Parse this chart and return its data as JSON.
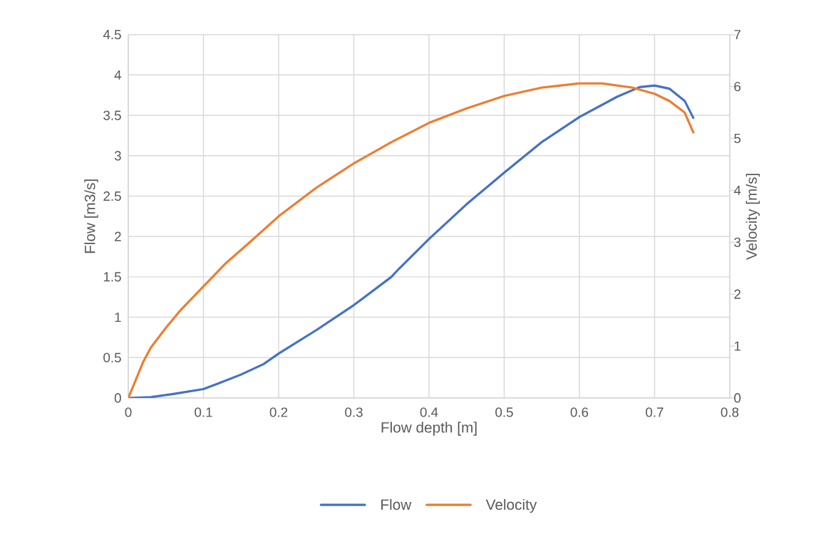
{
  "chart_data": {
    "type": "line",
    "xlabel": "Flow depth [m]",
    "ylabel": "Flow [m3/s]",
    "y2label": "Velocity [m/s]",
    "xlim": [
      0,
      0.8
    ],
    "xticks": [
      0,
      0.1,
      0.2,
      0.3,
      0.4,
      0.5,
      0.6,
      0.7,
      0.8
    ],
    "ylim": [
      0,
      4.5
    ],
    "yticks": [
      0,
      0.5,
      1,
      1.5,
      2,
      2.5,
      3,
      3.5,
      4,
      4.5
    ],
    "y2lim": [
      0,
      7
    ],
    "y2ticks": [
      0,
      1,
      2,
      3,
      4,
      5,
      6,
      7
    ],
    "grid": true,
    "legend": "bottom",
    "series": [
      {
        "name": "Flow",
        "color": "#4472c4",
        "x": [
          0,
          0.03,
          0.06,
          0.1,
          0.12,
          0.15,
          0.18,
          0.2,
          0.25,
          0.3,
          0.35,
          0.36,
          0.4,
          0.45,
          0.5,
          0.55,
          0.6,
          0.65,
          0.68,
          0.7,
          0.72,
          0.74,
          0.752
        ],
        "values": [
          0,
          0.01,
          0.05,
          0.11,
          0.18,
          0.29,
          0.42,
          0.55,
          0.84,
          1.15,
          1.5,
          1.6,
          1.97,
          2.4,
          2.79,
          3.17,
          3.48,
          3.73,
          3.85,
          3.87,
          3.83,
          3.68,
          3.46
        ]
      },
      {
        "name": "Velocity",
        "color": "#ed7d31",
        "axis": "y2",
        "x": [
          0,
          0.01,
          0.02,
          0.03,
          0.05,
          0.07,
          0.1,
          0.13,
          0.16,
          0.2,
          0.25,
          0.3,
          0.35,
          0.4,
          0.45,
          0.5,
          0.55,
          0.6,
          0.63,
          0.67,
          0.7,
          0.72,
          0.74,
          0.752
        ],
        "values": [
          0,
          0.35,
          0.7,
          0.97,
          1.35,
          1.7,
          2.15,
          2.6,
          2.98,
          3.5,
          4.05,
          4.52,
          4.93,
          5.3,
          5.58,
          5.82,
          5.98,
          6.06,
          6.06,
          5.98,
          5.86,
          5.72,
          5.5,
          5.1
        ]
      }
    ]
  }
}
